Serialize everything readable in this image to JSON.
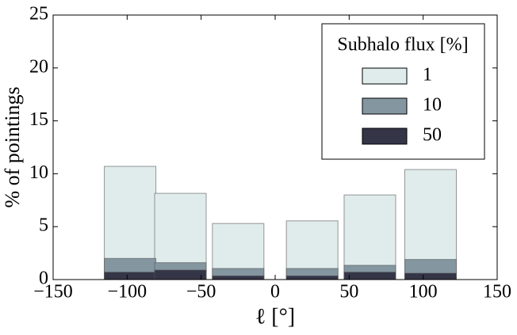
{
  "chart_data": {
    "type": "bar",
    "xlabel": "ℓ [°]",
    "ylabel": "% of pointings",
    "x": [
      -98,
      -64,
      -25,
      25,
      64,
      105
    ],
    "series": [
      {
        "name": "1",
        "color": "#e0ecec",
        "values": [
          10.7,
          8.15,
          5.3,
          5.55,
          8.0,
          10.4
        ]
      },
      {
        "name": "10",
        "color": "#8496a0",
        "values": [
          2.0,
          1.6,
          1.05,
          1.05,
          1.35,
          1.9
        ]
      },
      {
        "name": "50",
        "color": "#353548",
        "values": [
          0.7,
          0.9,
          0.35,
          0.35,
          0.7,
          0.6
        ]
      }
    ],
    "legend_title": "Subhalo flux [%]",
    "legend": "upper right",
    "xlim": [
      -150,
      150
    ],
    "xticks": [
      {
        "value": -150,
        "label": "−150"
      },
      {
        "value": -100,
        "label": "−100"
      },
      {
        "value": -50,
        "label": "−50"
      },
      0,
      50,
      100,
      150
    ],
    "ylim": [
      0,
      25
    ],
    "yticks": [
      0,
      5,
      10,
      15,
      20,
      25
    ]
  }
}
